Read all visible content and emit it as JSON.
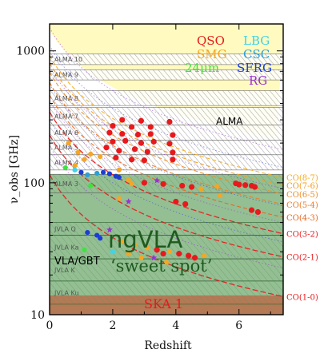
{
  "chart_data": {
    "type": "scatter",
    "xlabel": "Redshift",
    "ylabel": "ν_obs [GHz]",
    "xlim": [
      0,
      7.4
    ],
    "ylim": [
      10,
      1600
    ],
    "yscale": "log",
    "xticks": [
      "0",
      "2",
      "4",
      "6"
    ],
    "yticks": [
      "10",
      "100",
      "1000"
    ],
    "legend": [
      {
        "name": "QSO",
        "color": "#e8191d"
      },
      {
        "name": "SMG",
        "color": "#f5a623"
      },
      {
        "name": "24μm",
        "color": "#3ee33e"
      },
      {
        "name": "LBG",
        "color": "#3fd4e8"
      },
      {
        "name": "CSC",
        "color": "#2aa0d8"
      },
      {
        "name": "SFRG",
        "color": "#1c3cd6"
      },
      {
        "name": "RG",
        "color": "#9b2fd6"
      }
    ],
    "alma_bands": [
      {
        "label": "ALMA 10",
        "lo": 787,
        "hi": 950
      },
      {
        "label": "ALMA 9",
        "lo": 602,
        "hi": 720
      },
      {
        "label": "ALMA 8",
        "lo": 385,
        "hi": 500
      },
      {
        "label": "ALMA 7",
        "lo": 275,
        "hi": 373
      },
      {
        "label": "ALMA 6",
        "lo": 211,
        "hi": 275
      },
      {
        "label": "ALMA 5",
        "lo": 163,
        "hi": 211
      },
      {
        "label": "ALMA 4",
        "lo": 125,
        "hi": 163
      },
      {
        "label": "ALMA 3",
        "lo": 84,
        "hi": 116
      }
    ],
    "jvla_bands": [
      {
        "label": "JVLA Q",
        "lo": 40,
        "hi": 50
      },
      {
        "label": "JVLA Ka",
        "lo": 26.5,
        "hi": 40
      },
      {
        "label": "JVLA K",
        "lo": 18,
        "hi": 26.5
      },
      {
        "label": "JVLA Ku",
        "lo": 12,
        "hi": 18
      }
    ],
    "regions": {
      "alma": {
        "label": "ALMA"
      },
      "ngvla": {
        "label": "ngVLA",
        "lo": 10,
        "hi": 116
      },
      "sweet_spot": {
        "label": "‘sweet spot’"
      },
      "vla_gbt": {
        "label": "VLA/GBT"
      },
      "ska": {
        "label": "SKA 1",
        "lo": 10,
        "hi": 14
      }
    },
    "co_lines": [
      {
        "label": "CO(1-0)",
        "rest_ghz": 115.27,
        "color": "#e8191d"
      },
      {
        "label": "CO(2-1)",
        "rest_ghz": 230.54,
        "color": "#e8191d"
      },
      {
        "label": "CO(3-2)",
        "rest_ghz": 345.8,
        "color": "#e8191d"
      },
      {
        "label": "CO(4-3)",
        "rest_ghz": 461.04,
        "color": "#e8641d"
      },
      {
        "label": "CO(5-4)",
        "rest_ghz": 576.27,
        "color": "#ef7a1d"
      },
      {
        "label": "CO(6-5)",
        "rest_ghz": 691.47,
        "color": "#f08a1d"
      },
      {
        "label": "CO(7-6)",
        "rest_ghz": 806.65,
        "color": "#f39a1d"
      },
      {
        "label": "CO(8-7)",
        "rest_ghz": 921.8,
        "color": "#f5aa1d"
      }
    ],
    "points": [
      {
        "z": 2.0,
        "nu": 270,
        "c": "QSO"
      },
      {
        "z": 2.3,
        "nu": 300,
        "c": "QSO"
      },
      {
        "z": 2.6,
        "nu": 265,
        "c": "QSO"
      },
      {
        "z": 2.9,
        "nu": 295,
        "c": "QSO"
      },
      {
        "z": 3.2,
        "nu": 265,
        "c": "QSO"
      },
      {
        "z": 3.8,
        "nu": 290,
        "c": "QSO"
      },
      {
        "z": 1.9,
        "nu": 240,
        "c": "QSO"
      },
      {
        "z": 2.3,
        "nu": 235,
        "c": "QSO"
      },
      {
        "z": 2.8,
        "nu": 232,
        "c": "QSO"
      },
      {
        "z": 3.2,
        "nu": 234,
        "c": "QSO"
      },
      {
        "z": 3.9,
        "nu": 230,
        "c": "QSO"
      },
      {
        "z": 2.0,
        "nu": 205,
        "c": "QSO"
      },
      {
        "z": 2.4,
        "nu": 208,
        "c": "QSO"
      },
      {
        "z": 2.9,
        "nu": 200,
        "c": "QSO"
      },
      {
        "z": 3.3,
        "nu": 205,
        "c": "QSO"
      },
      {
        "z": 3.8,
        "nu": 198,
        "c": "QSO"
      },
      {
        "z": 1.8,
        "nu": 185,
        "c": "QSO"
      },
      {
        "z": 2.2,
        "nu": 175,
        "c": "QSO"
      },
      {
        "z": 2.7,
        "nu": 180,
        "c": "QSO"
      },
      {
        "z": 3.1,
        "nu": 172,
        "c": "QSO"
      },
      {
        "z": 3.9,
        "nu": 170,
        "c": "QSO"
      },
      {
        "z": 2.1,
        "nu": 155,
        "c": "QSO"
      },
      {
        "z": 2.6,
        "nu": 150,
        "c": "QSO"
      },
      {
        "z": 3.0,
        "nu": 148,
        "c": "QSO"
      },
      {
        "z": 3.9,
        "nu": 150,
        "c": "QSO"
      },
      {
        "z": 1.6,
        "nu": 158,
        "c": "SMG"
      },
      {
        "z": 1.3,
        "nu": 165,
        "c": "SMG"
      },
      {
        "z": 0.6,
        "nu": 200,
        "c": "SMG"
      },
      {
        "z": 0.9,
        "nu": 170,
        "c": "SMG"
      },
      {
        "z": 1.1,
        "nu": 150,
        "c": "SMG"
      },
      {
        "z": 2.2,
        "nu": 125,
        "c": "SMG"
      },
      {
        "z": 0.8,
        "nu": 135,
        "c": "SMG"
      },
      {
        "z": 1.7,
        "nu": 120,
        "c": "SFRG"
      },
      {
        "z": 1.9,
        "nu": 117,
        "c": "SFRG"
      },
      {
        "z": 2.1,
        "nu": 112,
        "c": "SFRG"
      },
      {
        "z": 2.2,
        "nu": 110,
        "c": "SFRG"
      },
      {
        "z": 1.2,
        "nu": 115,
        "c": "CSC"
      },
      {
        "z": 1.5,
        "nu": 118,
        "c": "CSC"
      },
      {
        "z": 0.8,
        "nu": 125,
        "c": "LBG"
      },
      {
        "z": 1.0,
        "nu": 120,
        "c": "SFRG"
      },
      {
        "z": 0.5,
        "nu": 130,
        "c": "24μm"
      },
      {
        "z": 1.3,
        "nu": 95,
        "c": "24μm"
      },
      {
        "z": 2.5,
        "nu": 105,
        "c": "SMG"
      },
      {
        "z": 3.0,
        "nu": 100,
        "c": "QSO"
      },
      {
        "z": 2.6,
        "nu": 98,
        "c": "SMG"
      },
      {
        "z": 3.4,
        "nu": 104,
        "c": "RG"
      },
      {
        "z": 3.6,
        "nu": 98,
        "c": "QSO"
      },
      {
        "z": 4.2,
        "nu": 95,
        "c": "QSO"
      },
      {
        "z": 4.5,
        "nu": 93,
        "c": "QSO"
      },
      {
        "z": 5.9,
        "nu": 99,
        "c": "QSO"
      },
      {
        "z": 6.0,
        "nu": 97,
        "c": "QSO"
      },
      {
        "z": 6.2,
        "nu": 96,
        "c": "QSO"
      },
      {
        "z": 6.4,
        "nu": 95,
        "c": "QSO"
      },
      {
        "z": 6.5,
        "nu": 93,
        "c": "QSO"
      },
      {
        "z": 5.3,
        "nu": 94,
        "c": "SMG"
      },
      {
        "z": 4.8,
        "nu": 90,
        "c": "SMG"
      },
      {
        "z": 2.2,
        "nu": 76,
        "c": "SMG"
      },
      {
        "z": 2.5,
        "nu": 72,
        "c": "RG"
      },
      {
        "z": 4.0,
        "nu": 72,
        "c": "QSO"
      },
      {
        "z": 4.3,
        "nu": 69,
        "c": "QSO"
      },
      {
        "z": 6.4,
        "nu": 62,
        "c": "QSO"
      },
      {
        "z": 6.6,
        "nu": 60,
        "c": "QSO"
      },
      {
        "z": 5.4,
        "nu": 80,
        "c": "SMG"
      },
      {
        "z": 1.9,
        "nu": 44,
        "c": "RG"
      },
      {
        "z": 1.2,
        "nu": 42,
        "c": "SFRG"
      },
      {
        "z": 1.5,
        "nu": 40,
        "c": "SFRG"
      },
      {
        "z": 1.6,
        "nu": 38,
        "c": "SFRG"
      },
      {
        "z": 2.3,
        "nu": 36,
        "c": "SMG"
      },
      {
        "z": 2.7,
        "nu": 34,
        "c": "SMG"
      },
      {
        "z": 3.1,
        "nu": 32,
        "c": "SMG"
      },
      {
        "z": 3.4,
        "nu": 31,
        "c": "QSO"
      },
      {
        "z": 3.6,
        "nu": 29,
        "c": "QSO"
      },
      {
        "z": 3.8,
        "nu": 30,
        "c": "SMG"
      },
      {
        "z": 4.1,
        "nu": 29,
        "c": "QSO"
      },
      {
        "z": 4.4,
        "nu": 28,
        "c": "QSO"
      },
      {
        "z": 4.6,
        "nu": 27,
        "c": "QSO"
      },
      {
        "z": 4.9,
        "nu": 28,
        "c": "SMG"
      },
      {
        "z": 2.5,
        "nu": 29,
        "c": "SMG"
      },
      {
        "z": 2.9,
        "nu": 27,
        "c": "SMG"
      },
      {
        "z": 3.3,
        "nu": 27,
        "c": "RG"
      },
      {
        "z": 3.7,
        "nu": 25,
        "c": "SMG"
      },
      {
        "z": 1.1,
        "nu": 31,
        "c": "24μm"
      },
      {
        "z": 2.0,
        "nu": 30,
        "c": "LBG"
      }
    ]
  }
}
